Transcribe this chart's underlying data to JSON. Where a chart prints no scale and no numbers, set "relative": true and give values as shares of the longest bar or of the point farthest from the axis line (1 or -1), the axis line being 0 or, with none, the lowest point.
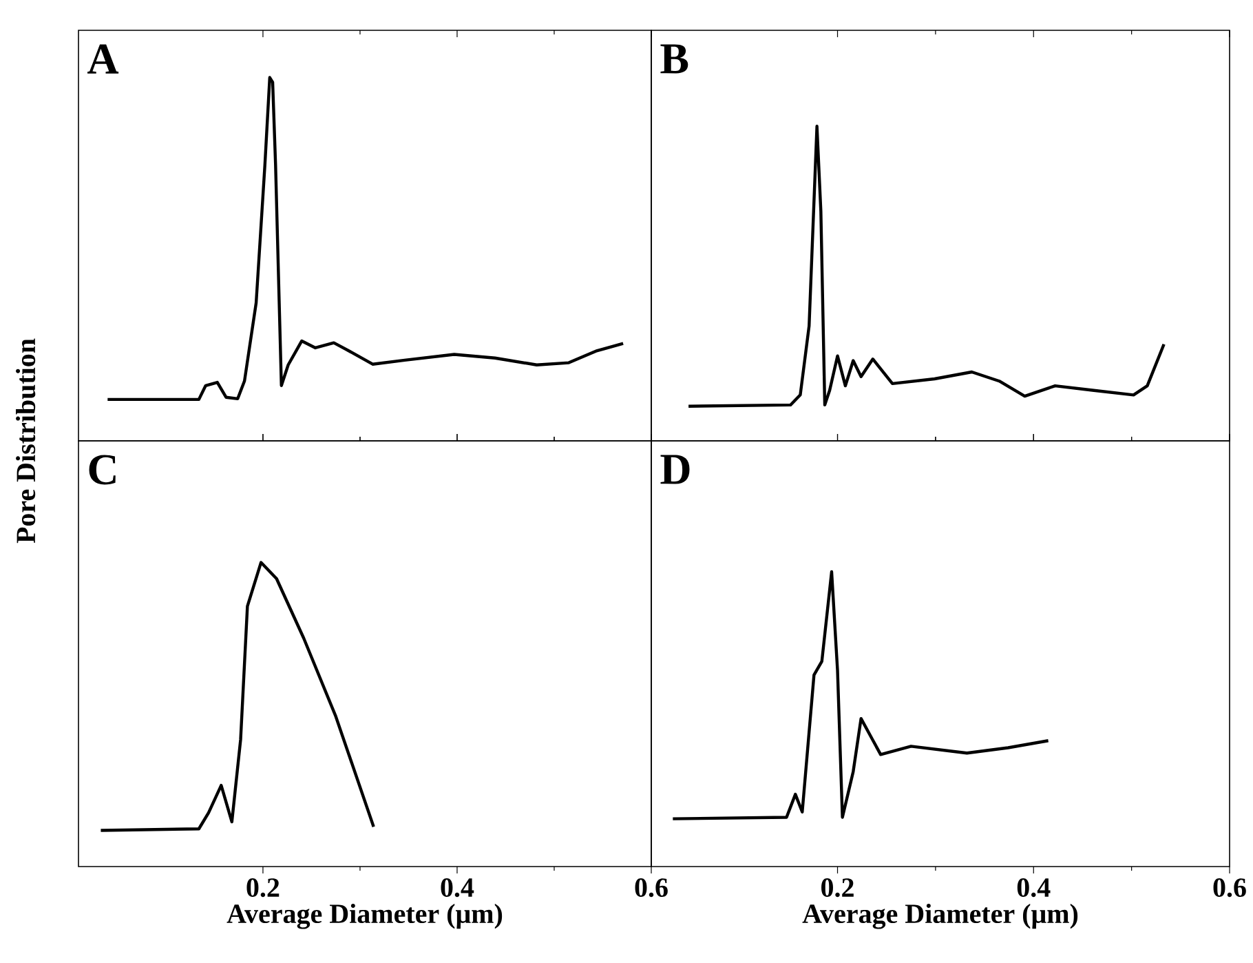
{
  "chart_data": [
    {
      "type": "line",
      "title": "A",
      "ylabel": "Pore Distribution",
      "relative": true,
      "xlim": [
        0.01,
        0.6
      ],
      "xticks": [
        0.2,
        0.4,
        0.6
      ],
      "tick_labels": false,
      "grid": false,
      "series": [
        {
          "color": "#000000",
          "x": [
            0.04,
            0.134,
            0.141,
            0.153,
            0.162,
            0.174,
            0.181,
            0.193,
            0.202,
            0.207,
            0.21,
            0.213,
            0.219,
            0.226,
            0.24,
            0.254,
            0.273,
            0.289,
            0.313,
            0.346,
            0.397,
            0.439,
            0.482,
            0.515,
            0.543,
            0.571
          ],
          "values": [
            0.114,
            0.114,
            0.152,
            0.161,
            0.12,
            0.116,
            0.165,
            0.38,
            0.759,
            1.0,
            0.987,
            0.759,
            0.152,
            0.209,
            0.275,
            0.256,
            0.27,
            0.247,
            0.211,
            0.222,
            0.238,
            0.228,
            0.209,
            0.215,
            0.247,
            0.268
          ]
        }
      ]
    },
    {
      "type": "line",
      "title": "B",
      "relative": true,
      "xlim": [
        0.01,
        0.6
      ],
      "xticks": [
        0.2,
        0.4,
        0.6
      ],
      "tick_labels": false,
      "grid": false,
      "series": [
        {
          "color": "#000000",
          "x": [
            0.048,
            0.152,
            0.162,
            0.171,
            0.179,
            0.183,
            0.187,
            0.192,
            0.2,
            0.208,
            0.216,
            0.224,
            0.236,
            0.256,
            0.299,
            0.337,
            0.365,
            0.391,
            0.422,
            0.46,
            0.502,
            0.516,
            0.533
          ],
          "values": [
            0.11,
            0.114,
            0.146,
            0.365,
            1.0,
            0.73,
            0.114,
            0.161,
            0.27,
            0.175,
            0.255,
            0.204,
            0.26,
            0.182,
            0.197,
            0.219,
            0.19,
            0.142,
            0.175,
            0.161,
            0.146,
            0.175,
            0.307
          ]
        }
      ]
    },
    {
      "type": "line",
      "title": "C",
      "xlabel": "Average Diameter (μm)",
      "relative": true,
      "xlim": [
        0.01,
        0.6
      ],
      "xticks": [
        0.2,
        0.4,
        0.6
      ],
      "tick_labels": "x",
      "grid": false,
      "series": [
        {
          "color": "#000000",
          "x": [
            0.033,
            0.134,
            0.144,
            0.157,
            0.168,
            0.177,
            0.184,
            0.198,
            0.214,
            0.242,
            0.275,
            0.314
          ],
          "values": [
            0.119,
            0.124,
            0.177,
            0.267,
            0.147,
            0.418,
            0.856,
            1.0,
            0.947,
            0.751,
            0.494,
            0.131
          ]
        }
      ]
    },
    {
      "type": "line",
      "title": "D",
      "xlabel": "Average Diameter (μm)",
      "relative": true,
      "xlim": [
        0.01,
        0.6
      ],
      "xticks": [
        0.2,
        0.4,
        0.6
      ],
      "tick_labels": "x",
      "grid": false,
      "series": [
        {
          "color": "#000000",
          "x": [
            0.032,
            0.148,
            0.157,
            0.164,
            0.176,
            0.184,
            0.194,
            0.2,
            0.205,
            0.216,
            0.224,
            0.244,
            0.275,
            0.332,
            0.374,
            0.415
          ],
          "values": [
            0.162,
            0.167,
            0.245,
            0.185,
            0.65,
            0.696,
            1.0,
            0.665,
            0.167,
            0.322,
            0.502,
            0.38,
            0.408,
            0.385,
            0.403,
            0.427
          ]
        }
      ]
    }
  ]
}
